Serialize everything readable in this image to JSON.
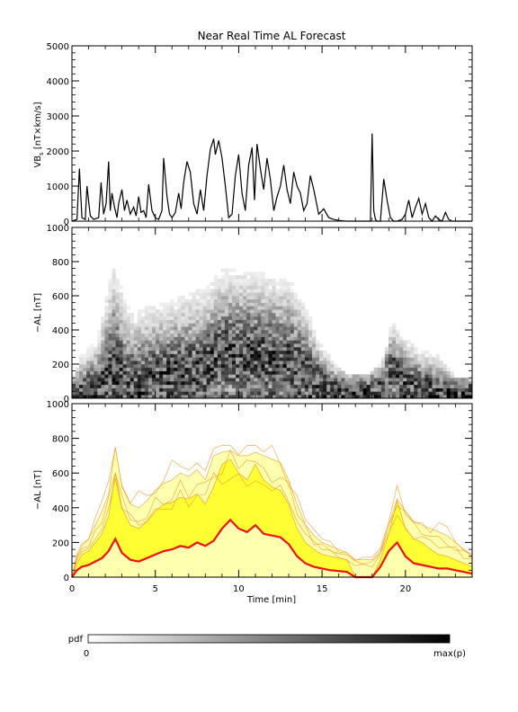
{
  "title": "Near Real Time AL Forecast",
  "colors": {
    "black": "#000000",
    "median": "#ee1111",
    "band_fill": "#ffff33",
    "band_edge": "#f0a030",
    "pale_fill": "#ffffb0"
  },
  "colorbar": {
    "label": "pdf",
    "min_label": "0",
    "max_label": "max(p)"
  },
  "chart_data": [
    {
      "type": "line",
      "panel": "top",
      "ylabel": "VB$_s$ [nT×km/s]",
      "ylabel_main": "VB",
      "ylabel_sub": "s",
      "ylabel_rest": " [nT×km/s]",
      "xlim": [
        0,
        24
      ],
      "ylim": [
        0,
        5000
      ],
      "yticks": [
        "0",
        "1000",
        "2000",
        "3000",
        "4000",
        "5000"
      ],
      "series": [
        {
          "x": [
            0.0,
            0.3,
            0.45,
            0.6,
            0.8,
            0.9,
            1.1,
            1.3,
            1.6,
            1.75,
            1.9,
            2.05,
            2.2,
            2.3,
            2.4,
            2.55,
            2.7,
            2.8,
            3.0,
            3.15,
            3.3,
            3.5,
            3.7,
            3.85,
            4.0,
            4.15,
            4.3,
            4.45,
            4.6,
            4.8,
            5.0,
            5.2,
            5.4,
            5.5,
            5.7,
            5.85,
            6.0,
            6.2,
            6.4,
            6.55,
            6.7,
            6.9,
            7.1,
            7.3,
            7.5,
            7.7,
            7.9,
            8.1,
            8.3,
            8.5,
            8.6,
            8.8,
            9.0,
            9.2,
            9.4,
            9.6,
            9.8,
            10.0,
            10.2,
            10.4,
            10.6,
            10.8,
            10.95,
            11.1,
            11.3,
            11.5,
            11.7,
            11.9,
            12.1,
            12.3,
            12.5,
            12.7,
            12.9,
            13.1,
            13.3,
            13.5,
            13.7,
            13.9,
            14.1,
            14.3,
            14.5,
            14.8,
            15.1,
            15.4,
            15.7,
            16.0,
            16.4,
            17.0,
            17.6,
            17.9,
            18.0,
            18.1,
            18.2,
            18.3,
            18.5,
            18.7,
            18.9,
            19.1,
            19.3,
            19.5,
            19.8,
            20.0,
            20.2,
            20.4,
            20.6,
            20.8,
            21.0,
            21.2,
            21.4,
            21.6,
            21.8,
            22.0,
            22.2,
            22.4,
            22.6,
            22.8,
            23.0,
            23.5,
            24.0
          ],
          "y": [
            0,
            50,
            1500,
            100,
            50,
            1000,
            150,
            50,
            100,
            1100,
            200,
            500,
            1700,
            300,
            800,
            400,
            100,
            500,
            900,
            300,
            600,
            200,
            400,
            150,
            700,
            250,
            300,
            100,
            1050,
            300,
            100,
            50,
            300,
            1800,
            700,
            200,
            100,
            250,
            800,
            350,
            1100,
            1700,
            1400,
            500,
            200,
            900,
            300,
            1300,
            2050,
            2350,
            1900,
            2300,
            1800,
            1000,
            100,
            200,
            1300,
            1900,
            800,
            300,
            1600,
            2100,
            600,
            2200,
            1500,
            900,
            1800,
            1200,
            300,
            700,
            1000,
            1600,
            900,
            500,
            1400,
            1000,
            800,
            300,
            500,
            1300,
            900,
            200,
            350,
            100,
            50,
            20,
            0,
            0,
            0,
            0,
            2500,
            300,
            50,
            0,
            0,
            1200,
            600,
            100,
            0,
            0,
            50,
            200,
            600,
            100,
            400,
            650,
            200,
            500,
            100,
            0,
            150,
            50,
            0,
            250,
            50,
            0,
            0,
            0,
            0
          ]
        }
      ]
    },
    {
      "type": "heatmap",
      "panel": "middle",
      "ylabel": "−AL [nT]",
      "xlim": [
        0,
        24
      ],
      "ylim": [
        0,
        1000
      ],
      "yticks": [
        "0",
        "200",
        "400",
        "600",
        "800",
        "1000"
      ],
      "density_profile": {
        "time": [
          0,
          0.5,
          1.5,
          2.5,
          3.5,
          5,
          6.5,
          8,
          9,
          10,
          11,
          12,
          13,
          14,
          15,
          16.5,
          17.5,
          18.5,
          19.2,
          20,
          21,
          22,
          23,
          24
        ],
        "median_AL": [
          20,
          30,
          60,
          150,
          80,
          120,
          150,
          170,
          280,
          250,
          260,
          230,
          220,
          150,
          70,
          50,
          40,
          80,
          180,
          90,
          60,
          50,
          40,
          30
        ],
        "max_AL": [
          100,
          250,
          350,
          780,
          500,
          550,
          600,
          650,
          750,
          750,
          740,
          720,
          700,
          550,
          300,
          130,
          130,
          200,
          450,
          350,
          280,
          250,
          130,
          120
        ]
      }
    },
    {
      "type": "area",
      "panel": "bottom",
      "ylabel": "−AL [nT]",
      "xlabel": "Time [min]",
      "xlim": [
        0,
        24
      ],
      "ylim": [
        0,
        1000
      ],
      "xticks": [
        "0",
        "5",
        "10",
        "15",
        "20"
      ],
      "yticks": [
        "0",
        "200",
        "400",
        "600",
        "800",
        "1000"
      ],
      "x": [
        0.0,
        0.3,
        0.6,
        1.0,
        1.4,
        1.8,
        2.2,
        2.6,
        3.0,
        3.5,
        4.0,
        4.5,
        5.0,
        5.5,
        6.0,
        6.5,
        7.0,
        7.5,
        8.0,
        8.5,
        9.0,
        9.5,
        10.0,
        10.5,
        11.0,
        11.5,
        12.0,
        12.5,
        13.0,
        13.5,
        14.0,
        14.5,
        15.0,
        15.5,
        16.0,
        16.5,
        17.0,
        17.5,
        18.0,
        18.5,
        19.0,
        19.5,
        20.0,
        20.5,
        21.0,
        21.5,
        22.0,
        22.5,
        23.0,
        23.5,
        24.0
      ],
      "series": [
        {
          "name": "median",
          "values": [
            0,
            40,
            60,
            70,
            90,
            110,
            150,
            220,
            140,
            100,
            90,
            110,
            130,
            150,
            160,
            180,
            170,
            200,
            180,
            210,
            280,
            330,
            280,
            260,
            300,
            250,
            240,
            230,
            190,
            120,
            80,
            60,
            50,
            40,
            35,
            30,
            0,
            0,
            0,
            60,
            150,
            200,
            120,
            80,
            70,
            60,
            50,
            50,
            40,
            30,
            20
          ]
        },
        {
          "name": "band_upper",
          "values": [
            0,
            80,
            130,
            150,
            200,
            250,
            350,
            600,
            400,
            300,
            280,
            320,
            380,
            420,
            430,
            460,
            450,
            480,
            420,
            520,
            650,
            680,
            600,
            560,
            650,
            560,
            520,
            500,
            420,
            280,
            200,
            160,
            130,
            120,
            110,
            100,
            0,
            0,
            0,
            100,
            250,
            440,
            280,
            220,
            200,
            160,
            130,
            120,
            100,
            80,
            60
          ]
        },
        {
          "name": "outer_upper",
          "values": [
            0,
            120,
            180,
            220,
            300,
            380,
            480,
            750,
            520,
            420,
            400,
            440,
            500,
            540,
            560,
            600,
            580,
            620,
            560,
            700,
            720,
            730,
            700,
            700,
            720,
            700,
            680,
            660,
            560,
            420,
            300,
            240,
            200,
            180,
            160,
            140,
            100,
            100,
            100,
            150,
            300,
            450,
            380,
            320,
            300,
            280,
            260,
            240,
            200,
            160,
            120
          ]
        }
      ]
    }
  ]
}
